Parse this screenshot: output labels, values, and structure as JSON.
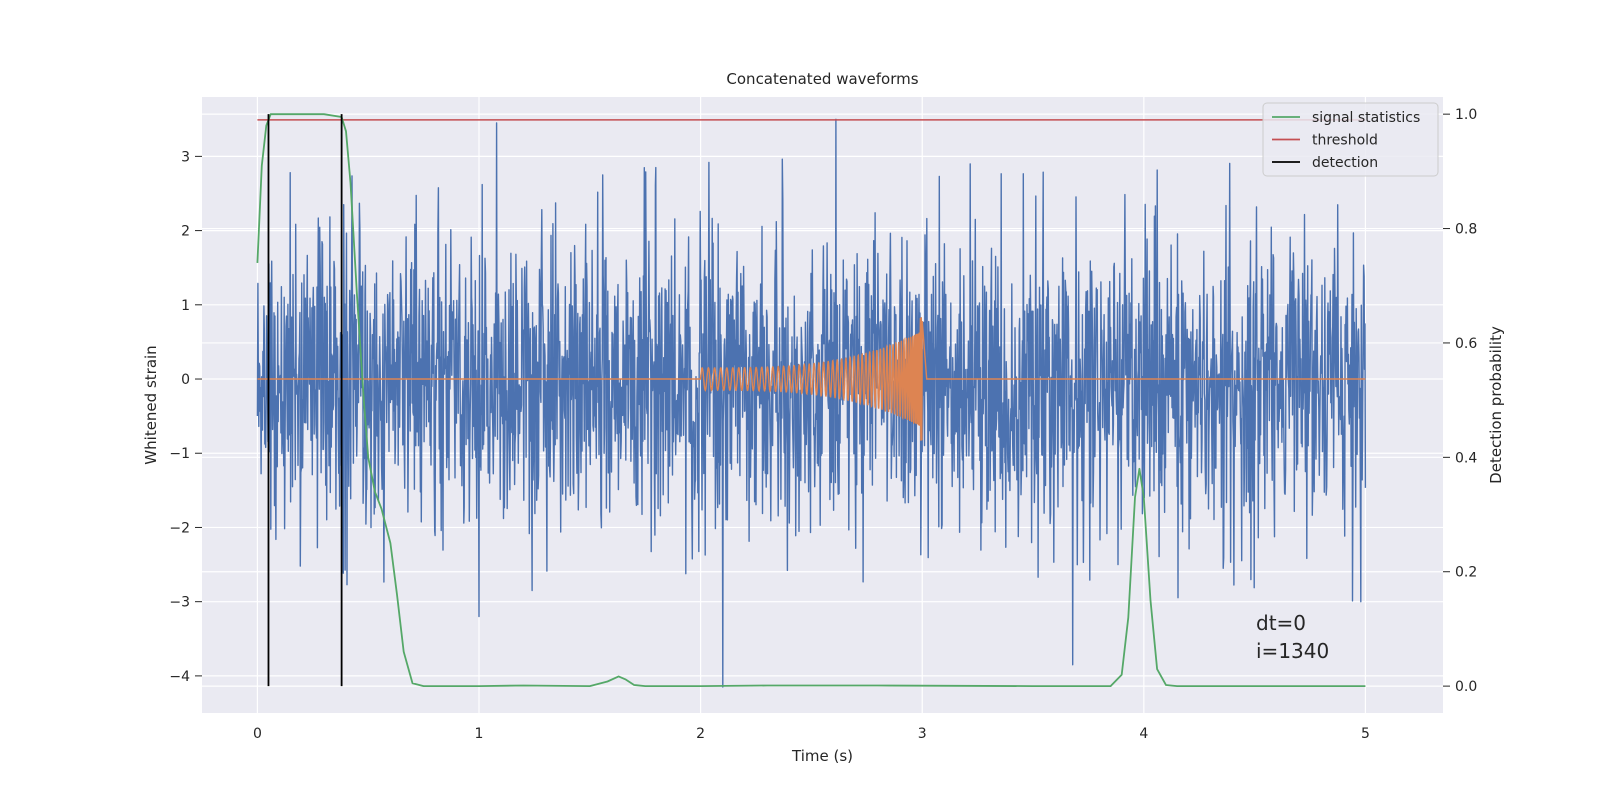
{
  "chart_data": {
    "type": "line",
    "title": "Concatenated waveforms",
    "xlabel": "Time (s)",
    "ylabel": "Whitened strain",
    "y2label": "Detection probability",
    "xlim": [
      -0.25,
      5.35
    ],
    "ylim": [
      -4.5,
      3.8
    ],
    "y2lim": [
      -0.047,
      1.03
    ],
    "xticks": [
      0,
      1,
      2,
      3,
      4,
      5
    ],
    "yticks": [
      3,
      2,
      1,
      0,
      -1,
      -2,
      -3,
      -4
    ],
    "ytick_labels": [
      "3",
      "2",
      "1",
      "0",
      "−1",
      "−2",
      "−3",
      "−4"
    ],
    "y2ticks": [
      1.0,
      0.8,
      0.6,
      0.4,
      0.2,
      0.0
    ],
    "y2tick_labels": [
      "1.0",
      "0.8",
      "0.6",
      "0.4",
      "0.2",
      "0.0"
    ],
    "grid": true,
    "legend_position": "top-right",
    "colors": {
      "background": "#eaeaf2",
      "grid": "#ffffff",
      "noise": "#4c72b0",
      "template": "#dd8452",
      "statistics": "#55a868",
      "threshold": "#c44e52",
      "detection": "#000000"
    },
    "series": [
      {
        "name": "signal statistics",
        "axis": "right",
        "x": [
          0.0,
          0.02,
          0.04,
          0.06,
          0.08,
          0.1,
          0.2,
          0.3,
          0.38,
          0.4,
          0.42,
          0.45,
          0.48,
          0.5,
          0.53,
          0.56,
          0.6,
          0.63,
          0.66,
          0.7,
          0.75,
          1.0,
          1.2,
          1.5,
          1.58,
          1.63,
          1.66,
          1.7,
          1.75,
          2.0,
          2.3,
          2.8,
          3.5,
          3.85,
          3.9,
          3.93,
          3.96,
          3.98,
          4.0,
          4.03,
          4.06,
          4.1,
          4.15,
          4.5,
          5.0
        ],
        "values": [
          0.74,
          0.91,
          0.98,
          1.0,
          1.0,
          1.0,
          1.0,
          1.0,
          0.995,
          0.97,
          0.88,
          0.68,
          0.5,
          0.4,
          0.34,
          0.31,
          0.25,
          0.16,
          0.06,
          0.005,
          0.0,
          0.0,
          0.001,
          0.0,
          0.008,
          0.017,
          0.012,
          0.002,
          0.0,
          0.0,
          0.001,
          0.001,
          0.0,
          0.0,
          0.02,
          0.12,
          0.33,
          0.38,
          0.33,
          0.15,
          0.03,
          0.002,
          0.0,
          0.0,
          0.0
        ]
      },
      {
        "name": "threshold",
        "axis": "right",
        "x": [
          0.0,
          5.0
        ],
        "values": [
          0.99,
          0.99
        ]
      },
      {
        "name": "detection",
        "axis": "right",
        "x": [
          0.05,
          0.38
        ],
        "y_range": [
          0.0,
          1.0
        ]
      },
      {
        "name": "",
        "axis": "left",
        "description_x_range": [
          0.0,
          5.0
        ],
        "amplitude_typical": 1.3,
        "peaks": [
          {
            "x": 1.08,
            "y": 3.45
          },
          {
            "x": 2.61,
            "y": 3.5
          },
          {
            "x": 2.1,
            "y": -4.15
          },
          {
            "x": 3.68,
            "y": -3.85
          },
          {
            "x": 1.0,
            "y": -3.2
          },
          {
            "x": 1.24,
            "y": -2.85
          },
          {
            "x": 4.98,
            "y": -3.0
          }
        ]
      },
      {
        "name": "",
        "axis": "left",
        "description_x_range": [
          2.0,
          3.0
        ],
        "amplitude_start": 0.15,
        "amplitude_peak": 0.65,
        "amplitude_min": -0.85,
        "frequency_start_hz": 35,
        "frequency_end_hz": 300
      }
    ],
    "annotations": [
      "dt=0",
      "i=1340"
    ]
  }
}
